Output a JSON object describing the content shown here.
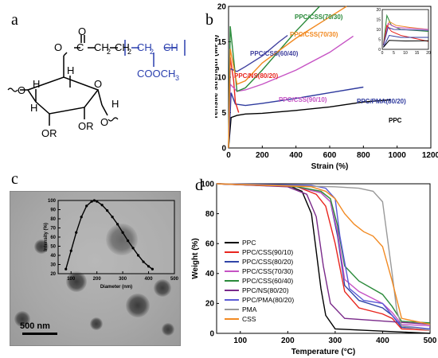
{
  "panels": {
    "a": "a",
    "b": "b",
    "c": "c",
    "d": "d"
  },
  "structure": {
    "labels": {
      "o_top": "O",
      "c_ester": "C",
      "o_dbl": "O",
      "ch2a": "CH",
      "sub2a": "2",
      "ch2b": "CH",
      "sub2b": "2",
      "ch2p": "CH",
      "sub2p": "2",
      "ch": "CH",
      "cooch3": "COOCH",
      "sub3": "3",
      "o_left": "O",
      "h1": "H",
      "h2": "H",
      "h3": "H",
      "h4": "H",
      "o_ring": "O",
      "or1": "OR",
      "or2": "OR",
      "o_bot": "O"
    }
  },
  "scale_bar": "500 nm",
  "chart_data": [
    {
      "id": "b",
      "type": "line",
      "xlabel": "Strain (%)",
      "ylabel": "Tensile strength (MPa)",
      "xlim": [
        0,
        1200
      ],
      "ylim": [
        0,
        20
      ],
      "xticks": [
        0,
        200,
        400,
        600,
        800,
        1000,
        1200
      ],
      "yticks": [
        0,
        5,
        10,
        15,
        20
      ],
      "series": [
        {
          "name": "PPC",
          "color": "#000000",
          "x": [
            0,
            15,
            50,
            100,
            200,
            400,
            600,
            800,
            960
          ],
          "y": [
            0,
            4.3,
            4.6,
            4.8,
            4.9,
            5.3,
            5.8,
            6.5,
            6.8
          ]
        },
        {
          "name": "PPC/PMA(80/20)",
          "color": "#2e3a9e",
          "x": [
            0,
            15,
            40,
            100,
            200,
            400,
            600,
            800
          ],
          "y": [
            0,
            7.8,
            6.2,
            6.0,
            6.3,
            7.0,
            7.8,
            8.6
          ]
        },
        {
          "name": "PPC/NS(80/20)",
          "color": "#e8261f",
          "x": [
            0,
            10,
            30,
            40,
            60
          ],
          "y": [
            0,
            12.8,
            9.5,
            6.5,
            5.0
          ]
        },
        {
          "name": "PPC/CSS(90/10)",
          "color": "#c653c4",
          "x": [
            0,
            10,
            50,
            100,
            200,
            400,
            600,
            740
          ],
          "y": [
            0,
            9.0,
            8.0,
            8.2,
            9.0,
            11.0,
            13.5,
            15.8
          ]
        },
        {
          "name": "PPC/CSS(60/40)",
          "color": "#3f3f9e",
          "x": [
            0,
            10,
            50,
            100,
            200,
            300,
            350
          ],
          "y": [
            0,
            11.2,
            10.8,
            11.5,
            13.0,
            15.0,
            15.9
          ]
        },
        {
          "name": "PPC/CSS(70/30)",
          "color": "#2a8a3a",
          "x": [
            0,
            10,
            50,
            100,
            200,
            400,
            540
          ],
          "y": [
            0,
            17.2,
            8.0,
            8.5,
            11.0,
            16.5,
            20.0
          ]
        },
        {
          "name": "PPC/CSS(70/30)",
          "color": "#f28a22",
          "x": [
            0,
            10,
            50,
            100,
            200,
            400,
            600,
            700
          ],
          "y": [
            0,
            14.0,
            9.0,
            9.5,
            12.0,
            15.5,
            18.5,
            20.0
          ]
        }
      ],
      "legend_labels": [
        "PPC/CSS(70/30)",
        "PPC/CSS(70/30)",
        "PPC/CSS(60/40)",
        "PPC/NS(80/20)",
        "PPC/CSS(90/10)",
        "PPC/PMA(80/20)",
        "PPC"
      ],
      "inset": {
        "xlim": [
          0,
          20
        ],
        "ylim": [
          0,
          20
        ],
        "xticks": [
          0,
          5,
          10,
          15,
          20
        ],
        "yticks": [
          0,
          5,
          10,
          15,
          20
        ]
      }
    },
    {
      "id": "c",
      "type": "line",
      "xlabel": "Diameter (nm)",
      "ylabel": "Intensity (%)",
      "xlim": [
        50,
        500
      ],
      "ylim": [
        20,
        100
      ],
      "xticks": [
        100,
        200,
        300,
        400,
        500
      ],
      "yticks": [
        20,
        30,
        40,
        50,
        60,
        70,
        80,
        90,
        100
      ],
      "series": [
        {
          "name": "",
          "color": "#000000",
          "x": [
            80,
            100,
            120,
            140,
            160,
            180,
            190,
            200,
            220,
            240,
            260,
            280,
            300,
            320,
            340,
            360,
            380,
            400,
            415
          ],
          "y": [
            25,
            45,
            65,
            82,
            94,
            99,
            100,
            99,
            95,
            89,
            82,
            74,
            65,
            56,
            48,
            40,
            33,
            28,
            25
          ]
        }
      ]
    },
    {
      "id": "d",
      "type": "line",
      "xlabel": "Temperature (°C)",
      "ylabel": "Weight (%)",
      "xlim": [
        50,
        500
      ],
      "ylim": [
        0,
        100
      ],
      "xticks": [
        100,
        200,
        300,
        400,
        500
      ],
      "yticks": [
        0,
        20,
        40,
        60,
        80,
        100
      ],
      "series": [
        {
          "name": "PPC",
          "color": "#000000",
          "x": [
            50,
            200,
            230,
            250,
            260,
            270,
            280,
            300,
            500
          ],
          "y": [
            100,
            99,
            95,
            80,
            55,
            30,
            12,
            3,
            0
          ]
        },
        {
          "name": "PPC/CSS(90/10)",
          "color": "#e8261f",
          "x": [
            50,
            220,
            260,
            280,
            300,
            320,
            350,
            400,
            420,
            440,
            500
          ],
          "y": [
            100,
            98,
            93,
            85,
            60,
            28,
            17,
            13,
            10,
            3,
            2
          ]
        },
        {
          "name": "PPC/CSS(80/20)",
          "color": "#3045a8",
          "x": [
            50,
            220,
            270,
            290,
            305,
            320,
            350,
            400,
            420,
            440,
            500
          ],
          "y": [
            100,
            98,
            94,
            88,
            65,
            32,
            22,
            17,
            12,
            4,
            3
          ]
        },
        {
          "name": "PPC/CSS(70/30)",
          "color": "#c653c4",
          "x": [
            50,
            220,
            270,
            290,
            305,
            320,
            350,
            400,
            420,
            440,
            500
          ],
          "y": [
            100,
            98,
            94,
            88,
            68,
            36,
            28,
            20,
            14,
            6,
            5
          ]
        },
        {
          "name": "PPC/CSS(60/40)",
          "color": "#2a8a3a",
          "x": [
            50,
            220,
            270,
            290,
            305,
            320,
            350,
            400,
            420,
            440,
            500
          ],
          "y": [
            100,
            98,
            95,
            90,
            72,
            45,
            35,
            26,
            18,
            8,
            7
          ]
        },
        {
          "name": "PPC/NS(80/20)",
          "color": "#7a2a8a",
          "x": [
            50,
            200,
            240,
            260,
            275,
            290,
            320,
            500
          ],
          "y": [
            100,
            98,
            93,
            78,
            45,
            20,
            10,
            6
          ]
        },
        {
          "name": "PPC/PMA(80/20)",
          "color": "#5b5bd6",
          "x": [
            50,
            250,
            280,
            300,
            310,
            330,
            360,
            400,
            420,
            440,
            500
          ],
          "y": [
            100,
            99,
            97,
            90,
            65,
            30,
            22,
            20,
            12,
            5,
            3
          ]
        },
        {
          "name": "PMA",
          "color": "#999999",
          "x": [
            50,
            300,
            350,
            380,
            400,
            420,
            430,
            440,
            500
          ],
          "y": [
            100,
            98,
            97,
            95,
            88,
            40,
            15,
            5,
            2
          ]
        },
        {
          "name": "CSS",
          "color": "#f28a22",
          "x": [
            50,
            250,
            280,
            300,
            320,
            340,
            360,
            380,
            400,
            420,
            440,
            500
          ],
          "y": [
            100,
            98,
            95,
            90,
            80,
            73,
            68,
            65,
            58,
            35,
            10,
            6
          ]
        }
      ]
    }
  ]
}
